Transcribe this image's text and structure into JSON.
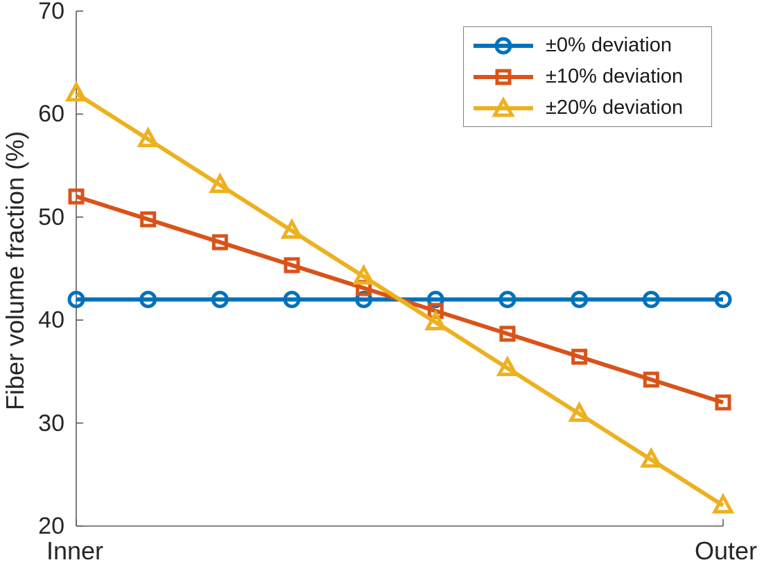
{
  "chart_data": {
    "type": "line",
    "title": "",
    "xlabel": "",
    "ylabel": "Fiber volume fraction (%)",
    "x_tick_labels": [
      "Inner",
      "Outer"
    ],
    "y_ticks": [
      20,
      30,
      40,
      50,
      60,
      70
    ],
    "ylim": [
      20,
      70
    ],
    "grid": false,
    "legend_position": "top-right",
    "n_points": 10,
    "series": [
      {
        "name": "±0% deviation",
        "marker": "circle",
        "color": "#0072BD",
        "values": [
          42,
          42,
          42,
          42,
          42,
          42,
          42,
          42,
          42,
          42
        ]
      },
      {
        "name": "±10% deviation",
        "marker": "square",
        "color": "#D95319",
        "values": [
          52,
          49.78,
          47.56,
          45.33,
          43.11,
          40.89,
          38.67,
          36.44,
          34.22,
          32
        ]
      },
      {
        "name": "±20% deviation",
        "marker": "triangle",
        "color": "#EDB120",
        "values": [
          62,
          57.56,
          53.11,
          48.67,
          44.22,
          39.78,
          35.33,
          30.89,
          26.44,
          22
        ]
      }
    ]
  },
  "axis": {
    "axis_color": "#5a5a5a",
    "y_tick_labels_top_to_bottom": [
      "70",
      "60",
      "50",
      "40",
      "30",
      "20"
    ],
    "x_left_label": "Inner",
    "x_right_label": "Outer"
  }
}
